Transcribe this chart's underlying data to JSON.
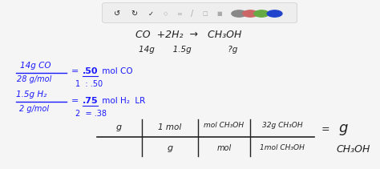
{
  "bg_color": "#f5f5f5",
  "toolbar_bg": "#eeeeee",
  "title_equation": "CO  +2H₂  →   CH₃OH",
  "title_masses": "14g       1.5g              ?g",
  "line1_num": "14g CO",
  "line1_den": "28 g/mol",
  "line1_eq": "= .50 mol CO",
  "line1_sub": "1  : .50",
  "line2_num": "1.5g H₂",
  "line2_den": "2 g/mol",
  "line2_eq": "= .75 mol H₂  LR",
  "line2_sub": "2  = .38",
  "rail_top_labels": [
    "g",
    "1 mol",
    "mol CH₃OH",
    "32g CH₃OH"
  ],
  "rail_bot_labels": [
    "",
    "g",
    "mol",
    "1mol CH₃OH"
  ],
  "result_eq": "=",
  "result_val": "g",
  "result_sub": "CH₃OH",
  "text_color": "#1a1aff",
  "black_color": "#222222",
  "dot_colors": [
    "#888888",
    "#cc6666",
    "#66aa44",
    "#2244cc"
  ]
}
